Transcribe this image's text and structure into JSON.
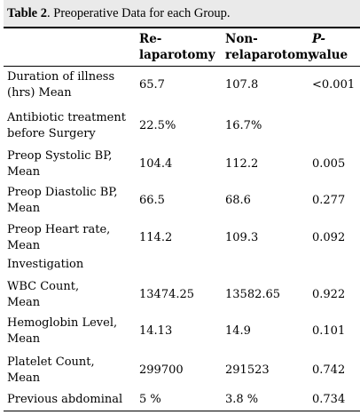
{
  "caption": {
    "label": "Table 2",
    "text": ". Preoperative Data for each Group."
  },
  "columns": {
    "relap_line1": "Re-",
    "relap_line2": "laparotomy",
    "nonrelap_line1": "Non-",
    "nonrelap_line2": "relaparotomy",
    "p_line1": "P-",
    "p_line2": "value"
  },
  "rows": [
    {
      "label": "Duration of illness\n(hrs) Mean",
      "relap": "65.7",
      "nonrelap": "107.8",
      "p": "<0.001"
    },
    {
      "label": "Antibiotic treatment\nbefore Surgery",
      "relap": "22.5%",
      "nonrelap": "16.7%",
      "p": ""
    },
    {
      "label": "Preop Systolic BP,\nMean",
      "relap": "104.4",
      "nonrelap": "112.2",
      "p": "0.005"
    },
    {
      "label": "Preop Diastolic BP,\nMean",
      "relap": "66.5",
      "nonrelap": "68.6",
      "p": "0.277"
    },
    {
      "label": "Preop Heart rate,\nMean",
      "relap": "114.2",
      "nonrelap": "109.3",
      "p": "0.092"
    },
    {
      "label": "Investigation",
      "relap": "",
      "nonrelap": "",
      "p": ""
    },
    {
      "label": "WBC Count,\nMean",
      "relap": "13474.25",
      "nonrelap": "13582.65",
      "p": "0.922"
    },
    {
      "label": "Hemoglobin Level,\nMean",
      "relap": "14.13",
      "nonrelap": "14.9",
      "p": "0.101"
    },
    {
      "label": "Platelet Count,\nMean",
      "relap": "299700",
      "nonrelap": "291523",
      "p": "0.742"
    },
    {
      "label": "Previous abdominal",
      "relap": "5 %",
      "nonrelap": "3.8 %",
      "p": "0.734"
    }
  ]
}
